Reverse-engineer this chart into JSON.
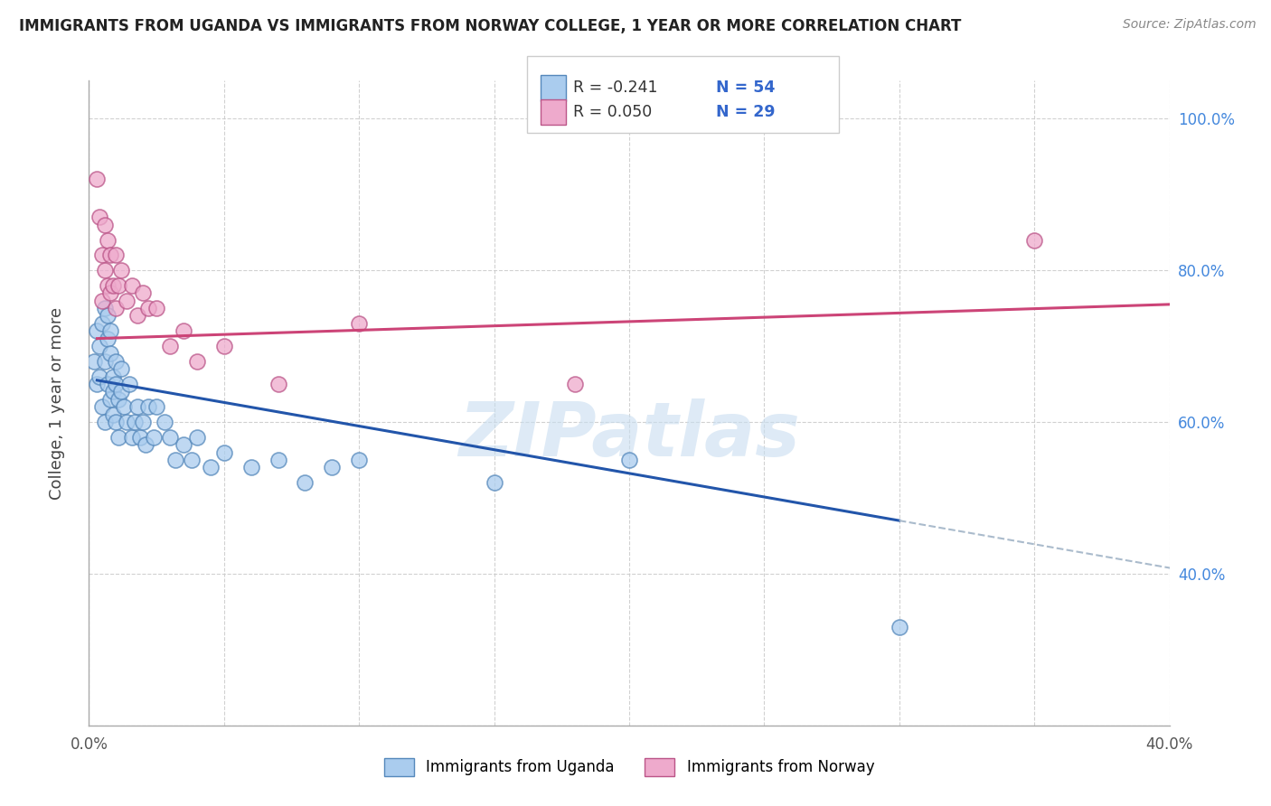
{
  "title": "IMMIGRANTS FROM UGANDA VS IMMIGRANTS FROM NORWAY COLLEGE, 1 YEAR OR MORE CORRELATION CHART",
  "source_text": "Source: ZipAtlas.com",
  "ylabel": "College, 1 year or more",
  "xlim": [
    0.0,
    0.4
  ],
  "ylim": [
    0.2,
    1.05
  ],
  "xtick_positions": [
    0.0,
    0.05,
    0.1,
    0.15,
    0.2,
    0.25,
    0.3,
    0.35,
    0.4
  ],
  "ytick_positions": [
    0.2,
    0.4,
    0.6,
    0.8,
    1.0
  ],
  "xticklabels": [
    "0.0%",
    "",
    "",
    "",
    "",
    "",
    "",
    "",
    "40.0%"
  ],
  "yticklabels_right": [
    "",
    "40.0%",
    "60.0%",
    "80.0%",
    "100.0%"
  ],
  "uganda_x": [
    0.002,
    0.003,
    0.003,
    0.004,
    0.004,
    0.005,
    0.005,
    0.006,
    0.006,
    0.006,
    0.007,
    0.007,
    0.007,
    0.008,
    0.008,
    0.008,
    0.009,
    0.009,
    0.009,
    0.01,
    0.01,
    0.01,
    0.011,
    0.011,
    0.012,
    0.012,
    0.013,
    0.014,
    0.015,
    0.016,
    0.017,
    0.018,
    0.019,
    0.02,
    0.021,
    0.022,
    0.024,
    0.025,
    0.028,
    0.03,
    0.032,
    0.035,
    0.038,
    0.04,
    0.045,
    0.05,
    0.06,
    0.07,
    0.08,
    0.09,
    0.1,
    0.15,
    0.2,
    0.3
  ],
  "uganda_y": [
    0.68,
    0.65,
    0.72,
    0.66,
    0.7,
    0.73,
    0.62,
    0.75,
    0.68,
    0.6,
    0.74,
    0.65,
    0.71,
    0.63,
    0.69,
    0.72,
    0.66,
    0.61,
    0.64,
    0.68,
    0.65,
    0.6,
    0.63,
    0.58,
    0.64,
    0.67,
    0.62,
    0.6,
    0.65,
    0.58,
    0.6,
    0.62,
    0.58,
    0.6,
    0.57,
    0.62,
    0.58,
    0.62,
    0.6,
    0.58,
    0.55,
    0.57,
    0.55,
    0.58,
    0.54,
    0.56,
    0.54,
    0.55,
    0.52,
    0.54,
    0.55,
    0.52,
    0.55,
    0.33
  ],
  "norway_x": [
    0.003,
    0.004,
    0.005,
    0.005,
    0.006,
    0.006,
    0.007,
    0.007,
    0.008,
    0.008,
    0.009,
    0.01,
    0.01,
    0.011,
    0.012,
    0.014,
    0.016,
    0.018,
    0.02,
    0.022,
    0.025,
    0.03,
    0.035,
    0.04,
    0.05,
    0.07,
    0.1,
    0.18,
    0.35
  ],
  "norway_y": [
    0.92,
    0.87,
    0.82,
    0.76,
    0.8,
    0.86,
    0.78,
    0.84,
    0.77,
    0.82,
    0.78,
    0.75,
    0.82,
    0.78,
    0.8,
    0.76,
    0.78,
    0.74,
    0.77,
    0.75,
    0.75,
    0.7,
    0.72,
    0.68,
    0.7,
    0.65,
    0.73,
    0.65,
    0.84
  ],
  "uganda_color": "#aaccee",
  "norway_color": "#eeaacc",
  "uganda_edge": "#5588bb",
  "norway_edge": "#bb5588",
  "uganda_line_color": "#2255aa",
  "norway_line_color": "#cc4477",
  "dashed_line_color": "#aabbcc",
  "R_uganda": -0.241,
  "N_uganda": 54,
  "R_norway": 0.05,
  "N_norway": 29,
  "legend_value_color": "#3366cc",
  "grid_color": "#cccccc",
  "watermark_text": "ZIPatlas"
}
